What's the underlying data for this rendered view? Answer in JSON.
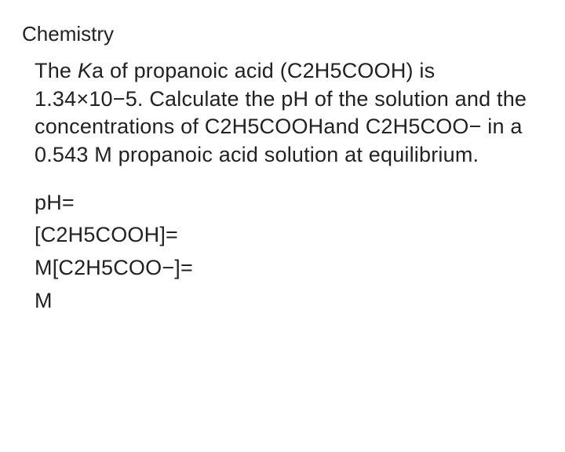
{
  "subject": "Chemistry",
  "question_parts": {
    "p1": "The ",
    "ka_k": "K",
    "ka_a": "a",
    "p2": " of propanoic acid (C2H5COOH) is 1.34×10−5. Calculate the pH of the solution and the concentrations of C2H5COOHand C2H5COO− in a 0.543 M propanoic acid solution at equilibrium."
  },
  "answers": {
    "line1": "pH=",
    "line2": "[C2H5COOH]=",
    "line3": "M[C2H5COO−]=",
    "line4": "M"
  },
  "colors": {
    "text": "#222222",
    "background": "#ffffff"
  },
  "typography": {
    "subject_fontsize": 26,
    "body_fontsize": 27,
    "line_height": 1.32
  }
}
